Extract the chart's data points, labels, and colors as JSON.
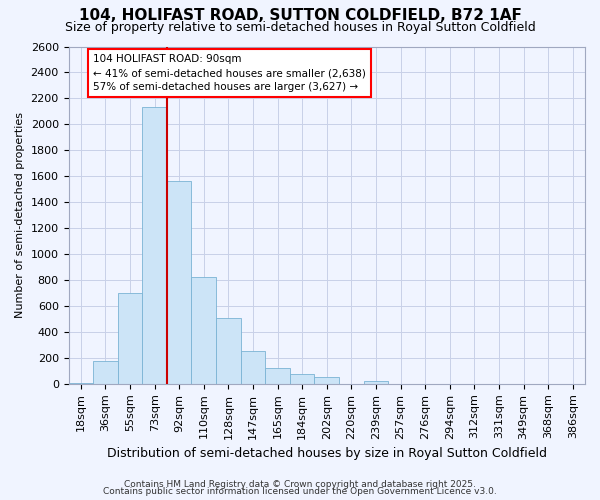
{
  "title": "104, HOLIFAST ROAD, SUTTON COLDFIELD, B72 1AF",
  "subtitle": "Size of property relative to semi-detached houses in Royal Sutton Coldfield",
  "xlabel": "Distribution of semi-detached houses by size in Royal Sutton Coldfield",
  "ylabel": "Number of semi-detached properties",
  "categories": [
    "18sqm",
    "36sqm",
    "55sqm",
    "73sqm",
    "92sqm",
    "110sqm",
    "128sqm",
    "147sqm",
    "165sqm",
    "184sqm",
    "202sqm",
    "220sqm",
    "239sqm",
    "257sqm",
    "276sqm",
    "294sqm",
    "312sqm",
    "331sqm",
    "349sqm",
    "368sqm",
    "386sqm"
  ],
  "values": [
    10,
    175,
    700,
    2130,
    1560,
    820,
    510,
    255,
    125,
    75,
    50,
    0,
    20,
    0,
    0,
    0,
    0,
    0,
    0,
    0,
    0
  ],
  "bar_color": "#cce4f7",
  "bar_edge_color": "#7ab3d4",
  "vline_color": "#cc0000",
  "vline_x": 4.5,
  "annotation_line1": "104 HOLIFAST ROAD: 90sqm",
  "annotation_line2": "← 41% of semi-detached houses are smaller (2,638)",
  "annotation_line3": "57% of semi-detached houses are larger (3,627) →",
  "ylim": [
    0,
    2600
  ],
  "yticks": [
    0,
    200,
    400,
    600,
    800,
    1000,
    1200,
    1400,
    1600,
    1800,
    2000,
    2200,
    2400,
    2600
  ],
  "footer1": "Contains HM Land Registry data © Crown copyright and database right 2025.",
  "footer2": "Contains public sector information licensed under the Open Government Licence v3.0.",
  "background_color": "#f0f4ff",
  "plot_bg_color": "#f0f4ff",
  "grid_color": "#c8d0e8",
  "title_fontsize": 11,
  "subtitle_fontsize": 9,
  "xlabel_fontsize": 9,
  "ylabel_fontsize": 8,
  "tick_fontsize": 8,
  "footer_fontsize": 6.5
}
